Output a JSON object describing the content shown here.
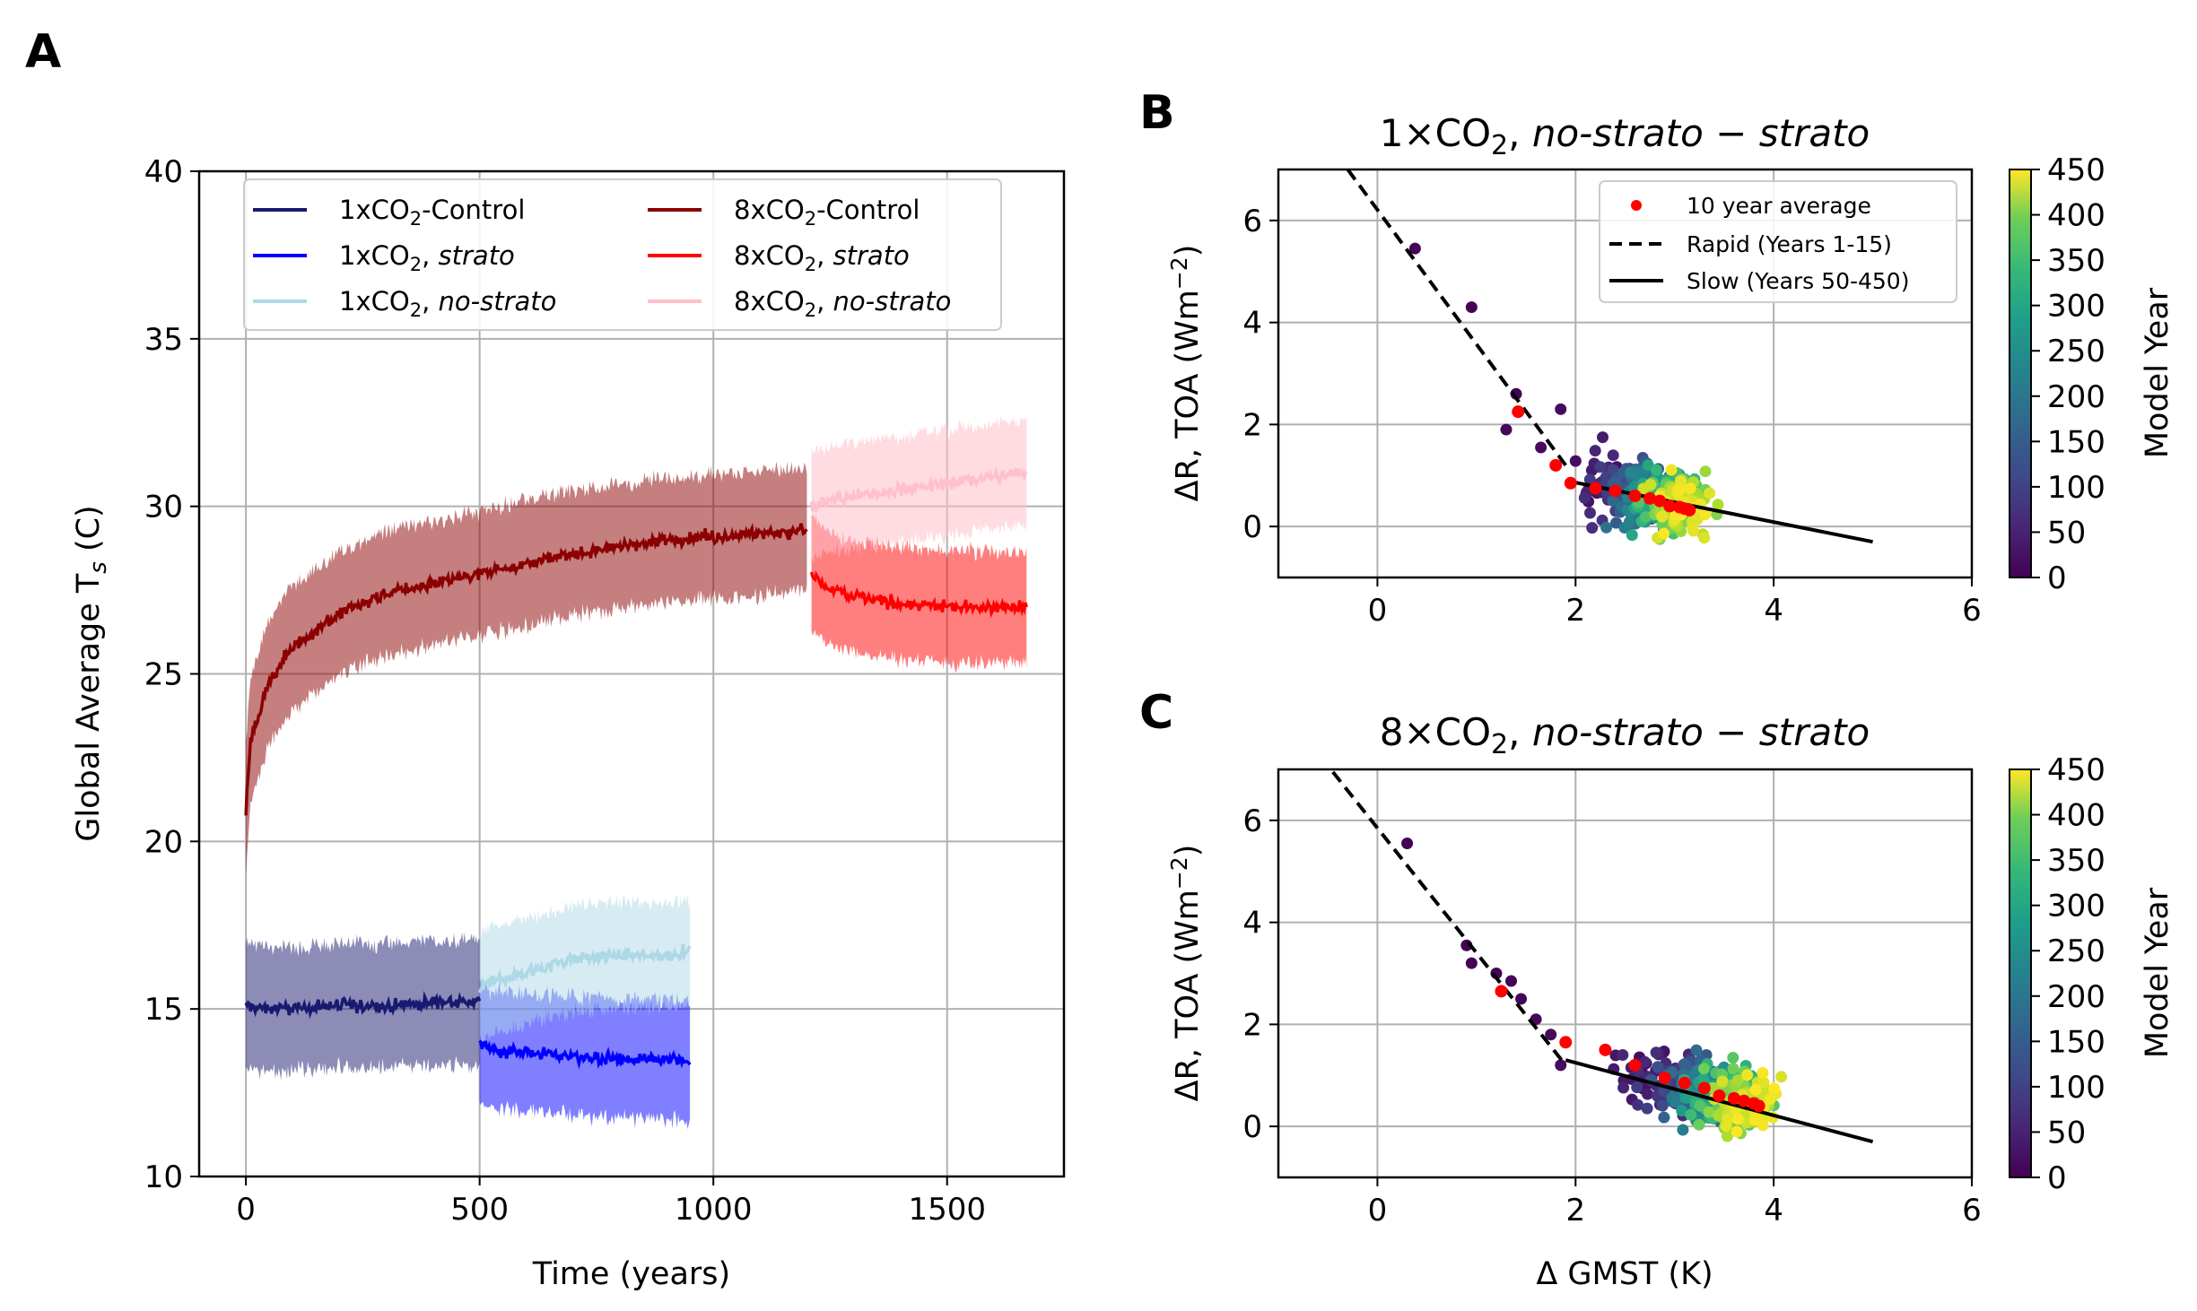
{
  "panels": {
    "A": {
      "label": "A",
      "ylabel": "Global Average T",
      "ylabel_sub": "s",
      "ylabel_unit": " (C)",
      "xlabel": "Time (years)",
      "xticks": [
        "0",
        "500",
        "1000",
        "1500"
      ],
      "yticks": [
        "10",
        "15",
        "20",
        "25",
        "30",
        "35",
        "40"
      ]
    },
    "B": {
      "label": "B",
      "title_prefix": "1×CO",
      "title_sub": "2",
      "title_mid": ", ",
      "title_italic1": "no-strato",
      "title_minus": " − ",
      "title_italic2": "strato",
      "ylabel": "ΔR, TOA (Wm",
      "ylabel_sup": "−2",
      "ylabel_end": ")",
      "xticks": [
        "0",
        "2",
        "4",
        "6"
      ],
      "yticks": [
        "0",
        "2",
        "4",
        "6"
      ],
      "colorbar_label": "Model Year",
      "colorbar_ticks": [
        "0",
        "50",
        "100",
        "150",
        "200",
        "250",
        "300",
        "350",
        "400",
        "450"
      ]
    },
    "C": {
      "label": "C",
      "title_prefix": "8×CO",
      "title_sub": "2",
      "title_mid": ", ",
      "title_italic1": "no-strato",
      "title_minus": " − ",
      "title_italic2": "strato",
      "ylabel": "ΔR, TOA (Wm",
      "ylabel_sup": "−2",
      "ylabel_end": ")",
      "xlabel": "Δ GMST (K)",
      "xticks": [
        "0",
        "2",
        "4",
        "6"
      ],
      "yticks": [
        "0",
        "2",
        "4",
        "6"
      ],
      "colorbar_label": "Model Year",
      "colorbar_ticks": [
        "0",
        "50",
        "100",
        "150",
        "200",
        "250",
        "300",
        "350",
        "400",
        "450"
      ]
    }
  },
  "legend_A": [
    {
      "pre": "1xCO",
      "sub": "2",
      "post": "-Control",
      "italic": ""
    },
    {
      "pre": "1xCO",
      "sub": "2",
      "post": ", ",
      "italic": "strato"
    },
    {
      "pre": "1xCO",
      "sub": "2",
      "post": ", ",
      "italic": "no-strato"
    },
    {
      "pre": "8xCO",
      "sub": "2",
      "post": "-Control",
      "italic": ""
    },
    {
      "pre": "8xCO",
      "sub": "2",
      "post": ", ",
      "italic": "strato"
    },
    {
      "pre": "8xCO",
      "sub": "2",
      "post": ", ",
      "italic": "no-strato"
    }
  ],
  "legend_BC": {
    "dots": "10 year average",
    "rapid": "Rapid (Years 1-15)",
    "slow": "Slow (Years 50-450)"
  },
  "colors": {
    "ctrl1": "#191970",
    "strato1": "#0000ff",
    "nostrato1": "#add8e6",
    "ctrl8": "#8b0000",
    "strato8": "#ff0000",
    "nostrato8": "#ffc0cb",
    "avg_dots": "#ff0000",
    "fit_lines": "#000000"
  },
  "chart_data": [
    {
      "panel": "A",
      "type": "line",
      "xlabel": "Time (years)",
      "ylabel": "Global Average T_s (C)",
      "xlim": [
        -100,
        1750
      ],
      "ylim": [
        10,
        40
      ],
      "grid": true,
      "legend_placement": "top",
      "series": [
        {
          "name": "1xCO2-Control",
          "x": [
            0,
            50,
            100,
            200,
            300,
            400,
            500
          ],
          "y": [
            15.1,
            15.0,
            15.0,
            15.1,
            15.1,
            15.2,
            15.2
          ],
          "band": 2.0
        },
        {
          "name": "1xCO2, strato",
          "x": [
            500,
            520,
            600,
            700,
            800,
            900,
            950
          ],
          "y": [
            14.0,
            13.8,
            13.7,
            13.6,
            13.5,
            13.5,
            13.4
          ],
          "band": 1.9
        },
        {
          "name": "1xCO2, no-strato",
          "x": [
            500,
            520,
            600,
            700,
            800,
            900,
            950
          ],
          "y": [
            15.6,
            15.8,
            16.1,
            16.5,
            16.6,
            16.6,
            16.7
          ],
          "band": 1.7
        },
        {
          "name": "8xCO2-Control",
          "x": [
            0,
            10,
            50,
            100,
            200,
            300,
            400,
            500,
            600,
            700,
            800,
            900,
            1000,
            1100,
            1200
          ],
          "y": [
            21.0,
            23.0,
            24.8,
            25.8,
            26.8,
            27.4,
            27.7,
            28.0,
            28.3,
            28.6,
            28.8,
            29.0,
            29.1,
            29.2,
            29.3
          ],
          "band": 2.0
        },
        {
          "name": "8xCO2, strato",
          "x": [
            1210,
            1250,
            1300,
            1400,
            1500,
            1600,
            1670
          ],
          "y": [
            28.0,
            27.5,
            27.3,
            27.1,
            27.0,
            27.0,
            27.0
          ],
          "band": 1.8
        },
        {
          "name": "8xCO2, no-strato",
          "x": [
            1210,
            1250,
            1300,
            1400,
            1500,
            1600,
            1670
          ],
          "y": [
            30.0,
            30.2,
            30.3,
            30.5,
            30.7,
            30.9,
            31.0
          ],
          "band": 1.7
        }
      ]
    },
    {
      "panel": "B",
      "type": "scatter",
      "title": "1×CO2, no-strato − strato",
      "xlabel": "Δ GMST (K)",
      "ylabel": "ΔR, TOA (Wm−2)",
      "xlim": [
        -1,
        6
      ],
      "ylim": [
        -1,
        7
      ],
      "colorbar": {
        "label": "Model Year",
        "range": [
          0,
          450
        ]
      },
      "early_points": [
        {
          "x": 0.38,
          "y": 5.45,
          "year": 1
        },
        {
          "x": 0.95,
          "y": 4.3,
          "year": 2
        },
        {
          "x": 1.4,
          "y": 2.6,
          "year": 5
        },
        {
          "x": 1.3,
          "y": 1.9,
          "year": 8
        },
        {
          "x": 1.65,
          "y": 1.55,
          "year": 12
        },
        {
          "x": 1.85,
          "y": 2.3,
          "year": 15
        }
      ],
      "cloud": {
        "x_center_start": 2.2,
        "x_center_end": 3.1,
        "y_center_start": 0.9,
        "y_center_end": 0.4,
        "spread_x": 0.28,
        "spread_y": 0.55,
        "years": [
          16,
          450
        ]
      },
      "ten_year_averages": {
        "x": [
          1.42,
          1.8,
          1.95,
          2.2,
          2.4,
          2.6,
          2.75,
          2.85,
          2.95,
          3.05,
          3.1,
          3.15
        ],
        "y": [
          2.25,
          1.2,
          0.85,
          0.75,
          0.7,
          0.6,
          0.55,
          0.5,
          0.4,
          0.38,
          0.35,
          0.32
        ]
      },
      "rapid_fit": {
        "x": [
          -0.3,
          1.9
        ],
        "y": [
          7.0,
          1.2
        ]
      },
      "slow_fit": {
        "x": [
          1.9,
          5.0
        ],
        "y": [
          0.9,
          -0.3
        ]
      }
    },
    {
      "panel": "C",
      "type": "scatter",
      "title": "8×CO2, no-strato − strato",
      "xlabel": "Δ GMST (K)",
      "ylabel": "ΔR, TOA (Wm−2)",
      "xlim": [
        -1,
        6
      ],
      "ylim": [
        -1,
        7
      ],
      "colorbar": {
        "label": "Model Year",
        "range": [
          0,
          450
        ]
      },
      "early_points": [
        {
          "x": 0.3,
          "y": 5.55,
          "year": 1
        },
        {
          "x": 0.9,
          "y": 3.55,
          "year": 2
        },
        {
          "x": 0.95,
          "y": 3.2,
          "year": 3
        },
        {
          "x": 1.2,
          "y": 3.0,
          "year": 4
        },
        {
          "x": 1.35,
          "y": 2.85,
          "year": 5
        },
        {
          "x": 1.45,
          "y": 2.5,
          "year": 7
        },
        {
          "x": 1.6,
          "y": 2.1,
          "year": 9
        },
        {
          "x": 1.75,
          "y": 1.8,
          "year": 11
        },
        {
          "x": 1.85,
          "y": 1.2,
          "year": 14
        }
      ],
      "cloud": {
        "x_center_start": 2.5,
        "x_center_end": 3.8,
        "y_center_start": 1.2,
        "y_center_end": 0.4,
        "spread_x": 0.3,
        "spread_y": 0.5,
        "years": [
          16,
          450
        ]
      },
      "ten_year_averages": {
        "x": [
          1.25,
          1.9,
          2.3,
          2.6,
          2.9,
          3.1,
          3.3,
          3.45,
          3.6,
          3.7,
          3.8,
          3.85
        ],
        "y": [
          2.65,
          1.65,
          1.5,
          1.2,
          0.95,
          0.85,
          0.75,
          0.6,
          0.55,
          0.5,
          0.45,
          0.4
        ]
      },
      "rapid_fit": {
        "x": [
          -0.45,
          1.9
        ],
        "y": [
          6.95,
          1.2
        ]
      },
      "slow_fit": {
        "x": [
          1.9,
          5.0
        ],
        "y": [
          1.3,
          -0.3
        ]
      }
    }
  ]
}
